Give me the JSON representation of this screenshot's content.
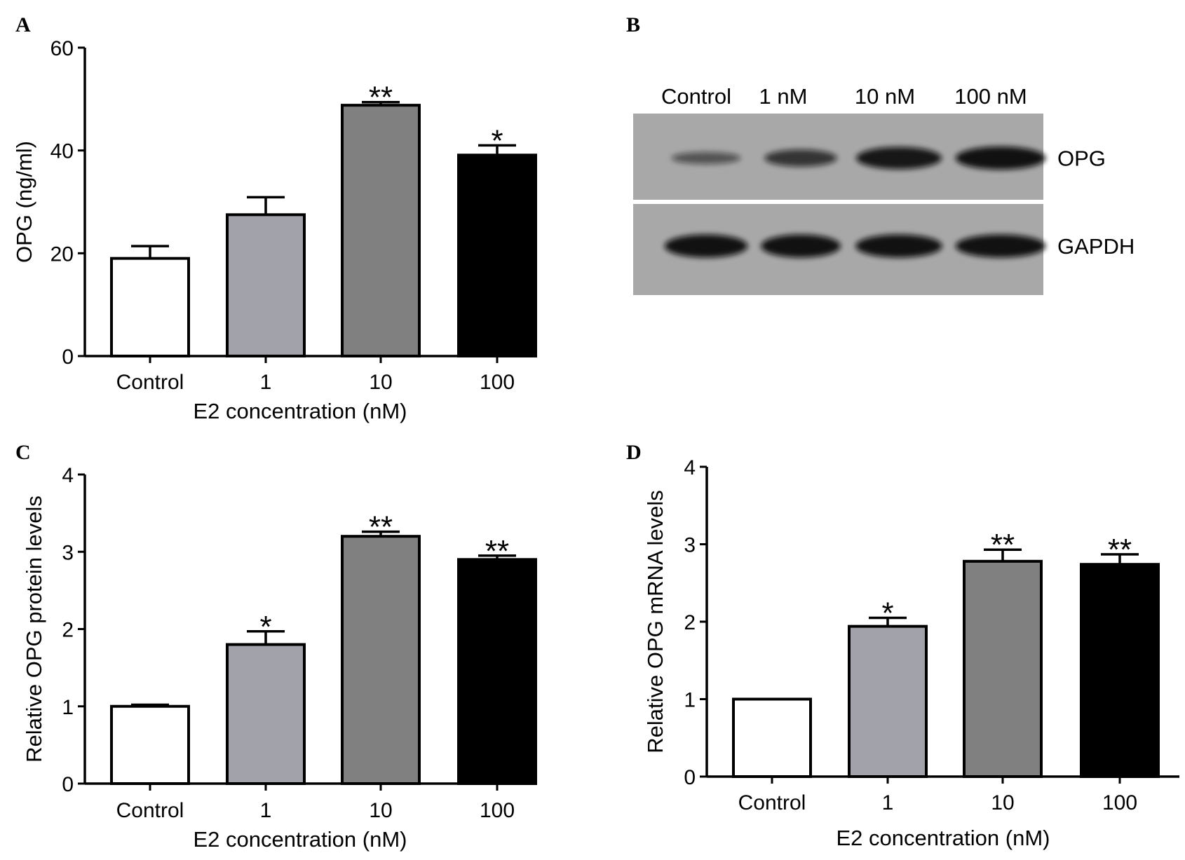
{
  "colors": {
    "bar_fills": [
      "#ffffff",
      "#a2a2aa",
      "#808080",
      "#000000"
    ],
    "axis": "#000000",
    "blot_background": "#a8a8a8",
    "blot_band": "#0a0a0a"
  },
  "chart_data": [
    {
      "panel": "A",
      "type": "bar",
      "categories": [
        "Control",
        "1",
        "10",
        "100"
      ],
      "values": [
        19,
        27.5,
        48.8,
        39.1
      ],
      "errors": [
        2.4,
        3.4,
        0.6,
        1.9
      ],
      "significance": [
        "",
        "",
        "**",
        "*"
      ],
      "xlabel": "E2 concentration (nM)",
      "ylabel": "OPG (ng/ml)",
      "ylim": [
        0,
        60
      ],
      "yticks": [
        "0",
        "20",
        "40",
        "60"
      ]
    },
    {
      "panel": "C",
      "type": "bar",
      "categories": [
        "Control",
        "1",
        "10",
        "100"
      ],
      "values": [
        1.0,
        1.8,
        3.2,
        2.9
      ],
      "errors": [
        0.02,
        0.17,
        0.06,
        0.05
      ],
      "significance": [
        "",
        "*",
        "**",
        "**"
      ],
      "xlabel": "E2 concentration (nM)",
      "ylabel": "Relative OPG protein levels",
      "ylim": [
        0,
        4
      ],
      "yticks": [
        "0",
        "1",
        "2",
        "3",
        "4"
      ]
    },
    {
      "panel": "D",
      "type": "bar",
      "categories": [
        "Control",
        "1",
        "10",
        "100"
      ],
      "values": [
        1.0,
        1.94,
        2.78,
        2.74
      ],
      "errors": [
        0.0,
        0.11,
        0.15,
        0.13
      ],
      "significance": [
        "",
        "*",
        "**",
        "**"
      ],
      "xlabel": "E2 concentration (nM)",
      "ylabel": "Relative OPG mRNA levels",
      "ylim": [
        0,
        4
      ],
      "yticks": [
        "0",
        "1",
        "2",
        "3",
        "4"
      ]
    }
  ],
  "blot": {
    "panel": "B",
    "lanes": [
      "Control",
      "1 nM",
      "10 nM",
      "100 nM"
    ],
    "rows": [
      {
        "label": "OPG",
        "band_intensity": [
          0.3,
          0.6,
          0.9,
          0.95
        ]
      },
      {
        "label": "GAPDH",
        "band_intensity": [
          0.95,
          0.95,
          0.95,
          0.95
        ]
      }
    ]
  }
}
